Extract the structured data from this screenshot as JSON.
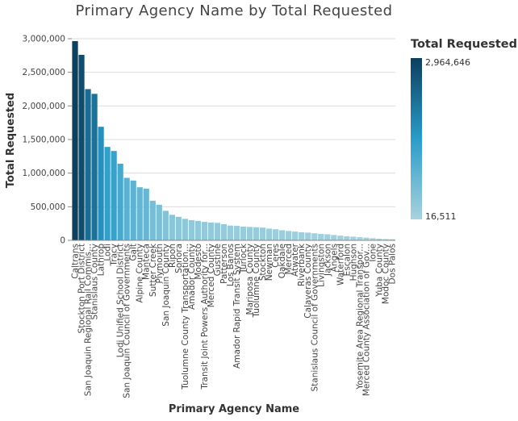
{
  "chart_data": {
    "type": "bar",
    "title": "Primary Agency Name by Total Requested",
    "xlabel": "Primary Agency Name",
    "ylabel": "Total Requested",
    "ylim": [
      0,
      3000000
    ],
    "yticks": [
      0,
      500000,
      1000000,
      1500000,
      2000000,
      2500000,
      3000000
    ],
    "ytick_labels": [
      "0",
      "500,000",
      "1,000,000",
      "1,500,000",
      "2,000,000",
      "2,500,000",
      "3,000,000"
    ],
    "grid": true,
    "legend": {
      "title": "Total Requested",
      "placement": "right",
      "max_label": "2,964,646",
      "min_label": "16,511",
      "max": 2964646,
      "min": 16511,
      "colors": [
        "#a9d2de",
        "#2a9cc9",
        "#0d3f5e"
      ]
    },
    "categories": [
      "Caltrans",
      "Stockton Port District",
      "San Joaquin Regional Rail Commis...",
      "Stanislaus County",
      "Lathrop",
      "Lodi",
      "Tracy",
      "Lodi Unified School District",
      "San Joaquin Council of Governments",
      "Galt",
      "Alpine County",
      "Manteca",
      "Sutter Creek",
      "Plymouth",
      "San Joaquin County",
      "Ripon",
      "Sonora",
      "Tuolumne County Transportation...",
      "Amador County",
      "Modesto",
      "Transit Joint Powers Authority for...",
      "Merced County",
      "Gustine",
      "Patterson",
      "Los Banos",
      "Amador Rapid Transit System",
      "Turlock",
      "Mariposa County",
      "Tuolumne County",
      "Stockton",
      "Newman",
      "Ceres",
      "Oakdale",
      "Merced",
      "Atwater",
      "Riverbank",
      "Calaveras County",
      "Stanislaus Council of Governments",
      "Livingston",
      "Jackson",
      "Angels",
      "Waterford",
      "Escalon",
      "Hughson",
      "Yosemite Area Regional Transpor...",
      "Merced County Association of Gov...",
      "Ione",
      "Yuba County",
      "Modoc County",
      "Dos Palos"
    ],
    "values": [
      2964646,
      2760000,
      2250000,
      2180000,
      1690000,
      1390000,
      1330000,
      1140000,
      930000,
      890000,
      790000,
      770000,
      590000,
      530000,
      440000,
      380000,
      350000,
      320000,
      300000,
      290000,
      275000,
      265000,
      260000,
      240000,
      220000,
      215000,
      205000,
      200000,
      195000,
      190000,
      175000,
      165000,
      150000,
      140000,
      130000,
      120000,
      115000,
      105000,
      95000,
      90000,
      80000,
      70000,
      60000,
      55000,
      48000,
      40000,
      32000,
      25000,
      20000,
      16511
    ]
  }
}
